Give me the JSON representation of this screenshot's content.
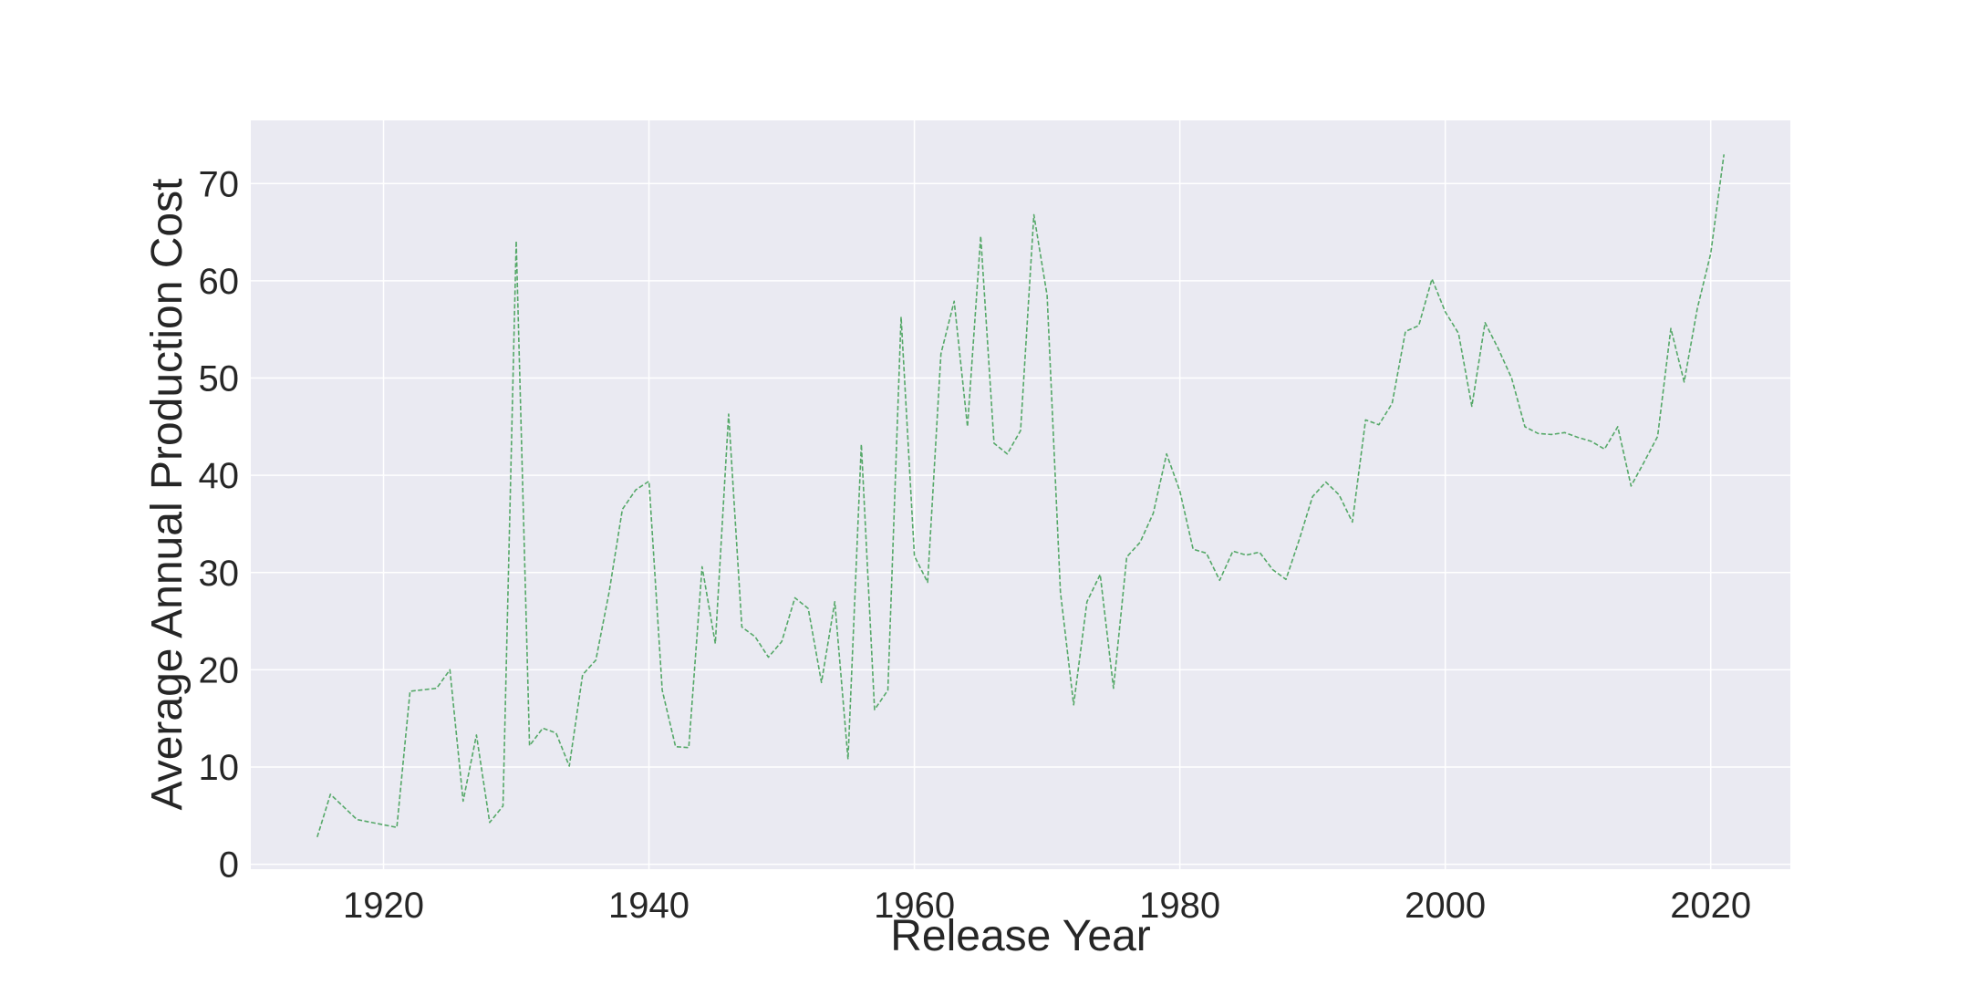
{
  "chart_data": {
    "type": "line",
    "title": "",
    "xlabel": "Release Year",
    "ylabel": "Average Annual Production Cost",
    "xlim": [
      1910,
      2026
    ],
    "ylim": [
      -0.5,
      76.5
    ],
    "xticks": [
      1920,
      1940,
      1960,
      1980,
      2000,
      2020
    ],
    "yticks": [
      0,
      10,
      20,
      30,
      40,
      50,
      60,
      70
    ],
    "grid": true,
    "legend": "none",
    "style": {
      "line_color": "#55a868",
      "line_style": "dashed",
      "background": "#eaeaf2",
      "grid_color": "#ffffff"
    },
    "series": [
      {
        "x": [
          1915,
          1916,
          1918,
          1921,
          1922,
          1924,
          1925,
          1926,
          1927,
          1928,
          1929,
          1930,
          1931,
          1932,
          1933,
          1934,
          1935,
          1936,
          1937,
          1938,
          1939,
          1940,
          1941,
          1942,
          1943,
          1944,
          1945,
          1946,
          1947,
          1948,
          1949,
          1950,
          1951,
          1952,
          1953,
          1954,
          1955,
          1956,
          1957,
          1958,
          1959,
          1960,
          1961,
          1962,
          1963,
          1964,
          1965,
          1966,
          1967,
          1968,
          1969,
          1970,
          1971,
          1972,
          1973,
          1974,
          1975,
          1976,
          1977,
          1978,
          1979,
          1980,
          1981,
          1982,
          1983,
          1984,
          1985,
          1986,
          1987,
          1988,
          1989,
          1990,
          1991,
          1992,
          1993,
          1994,
          1995,
          1996,
          1997,
          1998,
          1999,
          2000,
          2001,
          2002,
          2003,
          2004,
          2005,
          2006,
          2007,
          2008,
          2009,
          2010,
          2011,
          2012,
          2013,
          2014,
          2015,
          2016,
          2017,
          2018,
          2019,
          2020,
          2021
        ],
        "values": [
          2.8,
          7.2,
          4.6,
          3.8,
          17.8,
          18.1,
          20.0,
          6.5,
          13.3,
          4.3,
          6.0,
          64.1,
          12.2,
          14.0,
          13.5,
          10.1,
          19.5,
          21.0,
          28.0,
          36.5,
          38.5,
          39.4,
          17.9,
          12.1,
          12.0,
          30.6,
          22.7,
          46.3,
          24.4,
          23.4,
          21.3,
          22.9,
          27.4,
          26.3,
          18.7,
          27.0,
          10.8,
          43.2,
          15.9,
          17.9,
          56.3,
          31.7,
          29.0,
          52.5,
          57.9,
          45.0,
          64.6,
          43.3,
          42.2,
          44.6,
          66.8,
          58.5,
          28.0,
          16.4,
          27.0,
          29.8,
          18.1,
          31.6,
          33.1,
          36.1,
          42.2,
          38.4,
          32.4,
          32.0,
          29.2,
          32.2,
          31.8,
          32.1,
          30.3,
          29.3,
          33.4,
          37.8,
          39.3,
          38.0,
          35.2,
          45.7,
          45.2,
          47.4,
          54.8,
          55.4,
          60.2,
          56.8,
          54.6,
          47.1,
          55.7,
          53.0,
          50.0,
          45.0,
          44.3,
          44.2,
          44.4,
          43.9,
          43.5,
          42.7,
          45.0,
          38.9,
          41.4,
          44.0,
          55.1,
          49.6,
          57.2,
          62.8,
          73.0
        ]
      }
    ]
  }
}
